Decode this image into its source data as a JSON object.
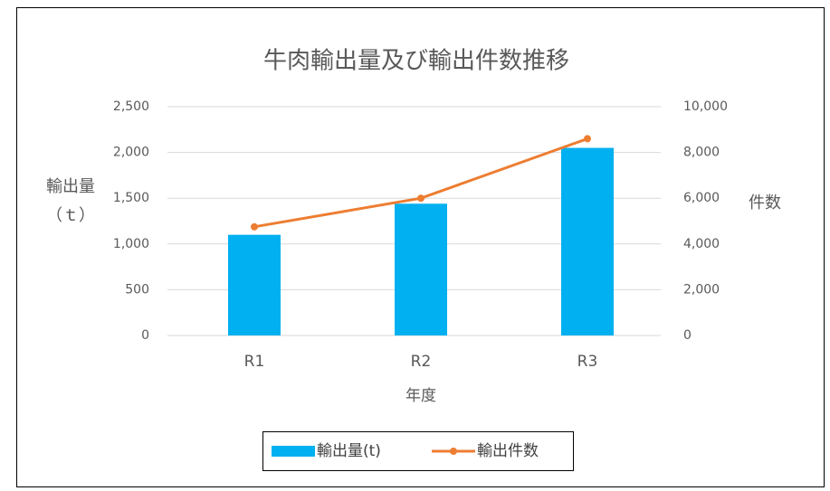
{
  "chart_data": {
    "type": "combo",
    "title": "牛肉輸出量及び輸出件数推移",
    "x_label": "年度",
    "y_label": [
      "輸出量",
      "（ｔ）"
    ],
    "y2_label": "件数",
    "categories": [
      "R1",
      "R2",
      "R3"
    ],
    "series": [
      {
        "name": "輸出量(t)",
        "type": "bar",
        "color": "#00b0f0",
        "values": [
          1100,
          1440,
          2050
        ]
      },
      {
        "name": "輸出件数",
        "type": "line",
        "axis": "y2",
        "color": "#ed7d31",
        "values": [
          4750,
          6000,
          8600
        ]
      }
    ],
    "ylim": [
      0,
      2500
    ],
    "yticks": [
      0,
      500,
      {
        "value": 1000,
        "label": "1,000"
      },
      {
        "value": 1500,
        "label": "1,500"
      },
      {
        "value": 2000,
        "label": "2,000"
      },
      {
        "value": 2500,
        "label": "2,500"
      }
    ],
    "y2lim": [
      0,
      10000
    ],
    "y2ticks": [
      0,
      {
        "value": 2000,
        "label": "2,000"
      },
      {
        "value": 4000,
        "label": "4,000"
      },
      {
        "value": 6000,
        "label": "6,000"
      },
      {
        "value": 8000,
        "label": "8,000"
      },
      {
        "value": 10000,
        "label": "10,000"
      }
    ],
    "grid": true,
    "legend": "bottom"
  }
}
